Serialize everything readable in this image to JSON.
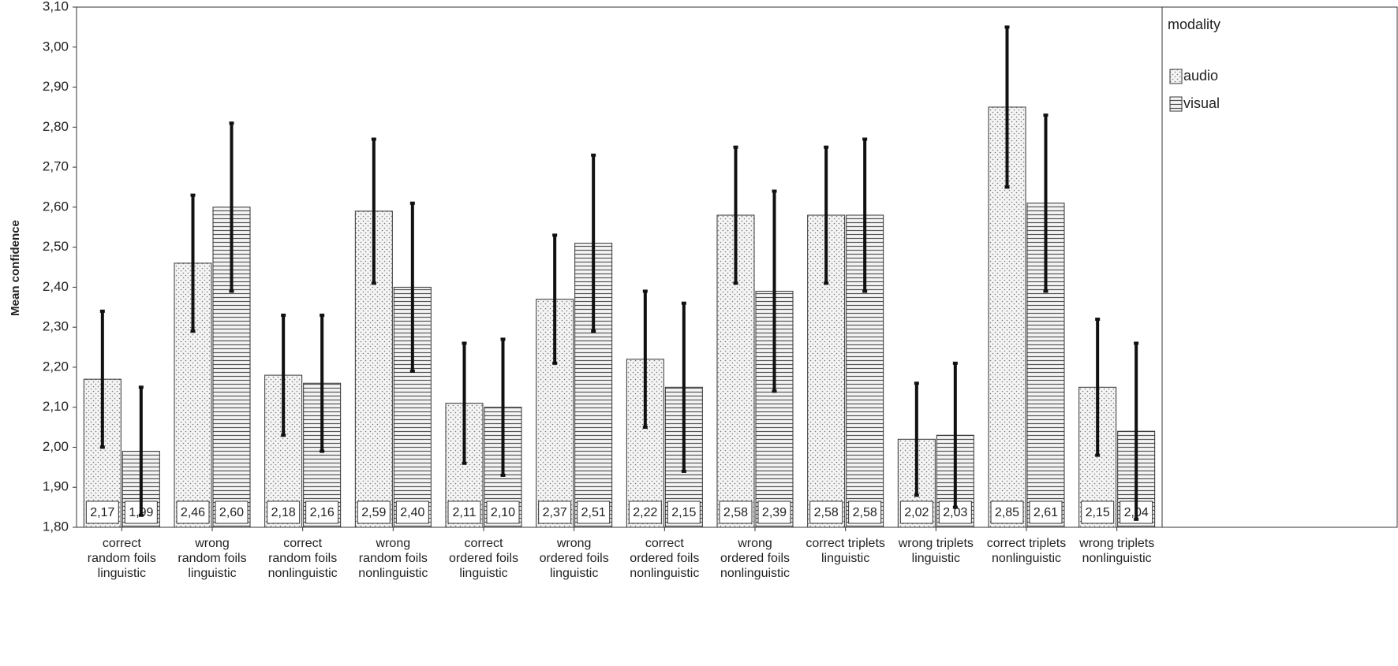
{
  "chart_data": {
    "type": "bar",
    "y_label": "Mean confidence",
    "legend_title": "modality",
    "legend": "right",
    "categories": [
      "correct\nrandom foils\nlinguistic",
      "wrong\nrandom foils\nlinguistic",
      "correct\nrandom foils\nnonlinguistic",
      "wrong\nrandom foils\nnonlinguistic",
      "correct\nordered foils\nlinguistic",
      "wrong\nordered foils\nlinguistic",
      "correct\nordered foils\nnonlinguistic",
      "wrong\nordered foils\nnonlinguistic",
      "correct triplets\nlinguistic",
      "wrong triplets\nlinguistic",
      "correct triplets\nnonlinguistic",
      "wrong triplets\nnonlinguistic"
    ],
    "series": [
      {
        "name": "audio",
        "color": "#f2f2f2",
        "pattern": "dots",
        "values": [
          2.17,
          2.46,
          2.18,
          2.59,
          2.11,
          2.37,
          2.22,
          2.58,
          2.58,
          2.02,
          2.85,
          2.15
        ],
        "value_labels": [
          "2,17",
          "2,46",
          "2,18",
          "2,59",
          "2,11",
          "2,37",
          "2,22",
          "2,58",
          "2,58",
          "2,02",
          "2,85",
          "2,15"
        ],
        "errors": [
          0.17,
          0.17,
          0.15,
          0.18,
          0.15,
          0.16,
          0.17,
          0.17,
          0.17,
          0.14,
          0.2,
          0.17
        ]
      },
      {
        "name": "visual",
        "color": "#f2f2f2",
        "pattern": "hlines",
        "values": [
          1.99,
          2.6,
          2.16,
          2.4,
          2.1,
          2.51,
          2.15,
          2.39,
          2.58,
          2.03,
          2.61,
          2.04
        ],
        "value_labels": [
          "1,99",
          "2,60",
          "2,16",
          "2,40",
          "2,10",
          "2,51",
          "2,15",
          "2,39",
          "2,58",
          "2,03",
          "2,61",
          "2,04"
        ],
        "errors": [
          0.16,
          0.21,
          0.17,
          0.21,
          0.17,
          0.22,
          0.21,
          0.25,
          0.19,
          0.18,
          0.22,
          0.22
        ]
      }
    ],
    "ylim": [
      1.8,
      3.1
    ],
    "yticks": [
      {
        "value": 1.8,
        "label": "1,80"
      },
      {
        "value": 1.9,
        "label": "1,90"
      },
      {
        "value": 2.0,
        "label": "2,00"
      },
      {
        "value": 2.1,
        "label": "2,10"
      },
      {
        "value": 2.2,
        "label": "2,20"
      },
      {
        "value": 2.3,
        "label": "2,30"
      },
      {
        "value": 2.4,
        "label": "2,40"
      },
      {
        "value": 2.5,
        "label": "2,50"
      },
      {
        "value": 2.6,
        "label": "2,60"
      },
      {
        "value": 2.7,
        "label": "2,70"
      },
      {
        "value": 2.8,
        "label": "2,80"
      },
      {
        "value": 2.9,
        "label": "2,90"
      },
      {
        "value": 3.0,
        "label": "3,00"
      },
      {
        "value": 3.1,
        "label": "3,10"
      }
    ],
    "grid": false
  }
}
